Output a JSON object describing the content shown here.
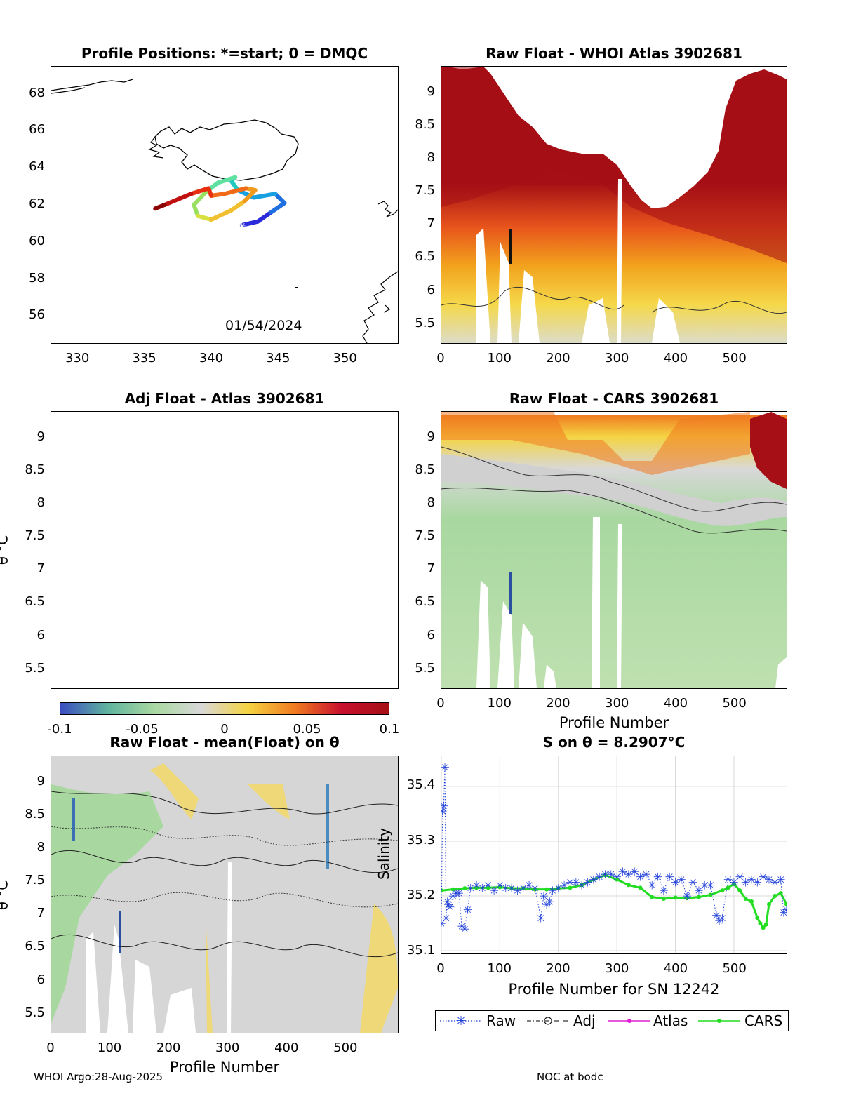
{
  "footer": {
    "left": "WHOI Argo:28-Aug-2025",
    "right": "NOC at bodc"
  },
  "colorbar": {
    "ticks": [
      "-0.1",
      "-0.05",
      "0",
      "0.05",
      "0.1"
    ],
    "colors": [
      "#3b4cc0",
      "#5fb3a0",
      "#a8d8a0",
      "#d8d8d8",
      "#f5d442",
      "#f07a20",
      "#c8102e",
      "#a50f15"
    ]
  },
  "chart_data": [
    {
      "type": "scatter",
      "id": "map",
      "title": "Profile Positions: *=start; 0 = DMQC",
      "date_label": "01/54/2024",
      "xlim": [
        328,
        354
      ],
      "ylim": [
        54.5,
        69.5
      ],
      "xticks": [
        "330",
        "335",
        "340",
        "345",
        "350"
      ],
      "yticks": [
        "56",
        "58",
        "60",
        "62",
        "64",
        "66",
        "68"
      ],
      "track": {
        "lon": [
          342.3,
          343.5,
          344.5,
          345.5,
          344.8,
          343.2,
          342.0,
          341.5,
          341.8,
          340.5,
          339.6,
          338.7,
          339.0,
          340.0,
          341.5,
          342.5,
          343.3,
          342.6,
          341.0,
          340.0,
          339.8,
          338.5,
          337.5,
          336.5,
          335.8
        ],
        "lat": [
          60.9,
          61.1,
          61.6,
          62.1,
          62.6,
          62.4,
          62.8,
          63.3,
          63.5,
          63.2,
          62.7,
          62.0,
          61.4,
          61.2,
          61.7,
          62.2,
          62.8,
          62.9,
          62.6,
          62.5,
          62.9,
          62.6,
          62.3,
          62.0,
          61.8
        ]
      },
      "start_lon": 342.3,
      "start_lat": 60.9
    },
    {
      "type": "heatmap",
      "id": "whoi",
      "title": "Raw Float - WHOI Atlas  3902681",
      "xlim": [
        0,
        590
      ],
      "ylim": [
        5.2,
        9.4
      ],
      "xticks": [
        "0",
        "100",
        "200",
        "300",
        "400",
        "500"
      ],
      "yticks": [
        "5.5",
        "6",
        "6.5",
        "7",
        "7.5",
        "8",
        "8.5",
        "9"
      ]
    },
    {
      "type": "heatmap",
      "id": "adj",
      "title": "Adj Float - Atlas  3902681",
      "ylabel": "θ °C",
      "xlim": [
        0,
        590
      ],
      "ylim": [
        5.2,
        9.4
      ],
      "yticks": [
        "5.5",
        "6",
        "6.5",
        "7",
        "7.5",
        "8",
        "8.5",
        "9"
      ]
    },
    {
      "type": "heatmap",
      "id": "cars",
      "title": "Raw Float - CARS  3902681",
      "xlabel": "Profile Number",
      "xlim": [
        0,
        590
      ],
      "ylim": [
        5.2,
        9.4
      ],
      "xticks": [
        "0",
        "100",
        "200",
        "300",
        "400",
        "500"
      ],
      "yticks": [
        "5.5",
        "6",
        "6.5",
        "7",
        "7.5",
        "8",
        "8.5",
        "9"
      ]
    },
    {
      "type": "heatmap",
      "id": "mean",
      "title": "Raw Float - mean(Float) on θ",
      "ylabel": "θ °C",
      "xlabel": "Profile Number",
      "xlim": [
        0,
        590
      ],
      "ylim": [
        5.2,
        9.4
      ],
      "xticks": [
        "0",
        "100",
        "200",
        "300",
        "400",
        "500"
      ],
      "yticks": [
        "5.5",
        "6",
        "6.5",
        "7",
        "7.5",
        "8",
        "8.5",
        "9"
      ]
    },
    {
      "type": "line",
      "id": "salinity",
      "title": "S on θ = 8.2907°C",
      "xlabel": "Profile Number for SN 12242",
      "ylabel": "Salinity",
      "xlim": [
        0,
        590
      ],
      "ylim": [
        35.095,
        35.455
      ],
      "xticks": [
        "0",
        "100",
        "200",
        "300",
        "400",
        "500"
      ],
      "yticks": [
        "35.1",
        "35.2",
        "35.3",
        "35.4"
      ],
      "legend": [
        "Raw",
        "Adj",
        "Atlas",
        "CARS"
      ],
      "series": [
        {
          "name": "Raw",
          "x": [
            0,
            2,
            4,
            6,
            8,
            10,
            12,
            15,
            20,
            25,
            30,
            35,
            40,
            45,
            50,
            60,
            70,
            80,
            90,
            100,
            110,
            120,
            130,
            140,
            150,
            160,
            170,
            175,
            180,
            185,
            190,
            200,
            210,
            220,
            230,
            240,
            250,
            260,
            270,
            280,
            290,
            300,
            310,
            320,
            330,
            340,
            350,
            360,
            370,
            380,
            390,
            400,
            410,
            420,
            430,
            440,
            450,
            460,
            470,
            475,
            480,
            490,
            500,
            510,
            520,
            530,
            540,
            550,
            560,
            570,
            580,
            585,
            590
          ],
          "y": [
            35.15,
            35.355,
            35.365,
            35.435,
            35.16,
            35.19,
            35.185,
            35.18,
            35.2,
            35.205,
            35.205,
            35.145,
            35.14,
            35.175,
            35.215,
            35.22,
            35.215,
            35.22,
            35.21,
            35.22,
            35.215,
            35.215,
            35.21,
            35.215,
            35.22,
            35.215,
            35.16,
            35.2,
            35.185,
            35.19,
            35.21,
            35.215,
            35.22,
            35.225,
            35.225,
            35.22,
            35.225,
            35.23,
            35.235,
            35.24,
            35.24,
            35.235,
            35.245,
            35.24,
            35.245,
            35.235,
            35.24,
            35.22,
            35.235,
            35.21,
            35.235,
            35.225,
            35.23,
            35.2,
            35.225,
            35.21,
            35.22,
            35.22,
            35.165,
            35.155,
            35.16,
            35.23,
            35.225,
            35.235,
            35.225,
            35.23,
            35.225,
            35.235,
            35.23,
            35.225,
            35.23,
            35.17,
            35.175
          ]
        },
        {
          "name": "CARS",
          "x": [
            0,
            20,
            40,
            60,
            80,
            100,
            120,
            140,
            160,
            180,
            200,
            220,
            240,
            260,
            280,
            300,
            320,
            340,
            360,
            380,
            400,
            420,
            440,
            460,
            480,
            490,
            500,
            510,
            520,
            530,
            540,
            545,
            550,
            555,
            560,
            570,
            580,
            590
          ],
          "y": [
            35.21,
            35.212,
            35.214,
            35.215,
            35.215,
            35.216,
            35.214,
            35.214,
            35.212,
            35.212,
            35.214,
            35.215,
            35.22,
            35.23,
            35.238,
            35.23,
            35.22,
            35.215,
            35.198,
            35.195,
            35.197,
            35.196,
            35.198,
            35.202,
            35.21,
            35.215,
            35.222,
            35.21,
            35.195,
            35.19,
            35.16,
            35.15,
            35.142,
            35.148,
            35.185,
            35.2,
            35.205,
            35.185
          ]
        }
      ]
    }
  ]
}
